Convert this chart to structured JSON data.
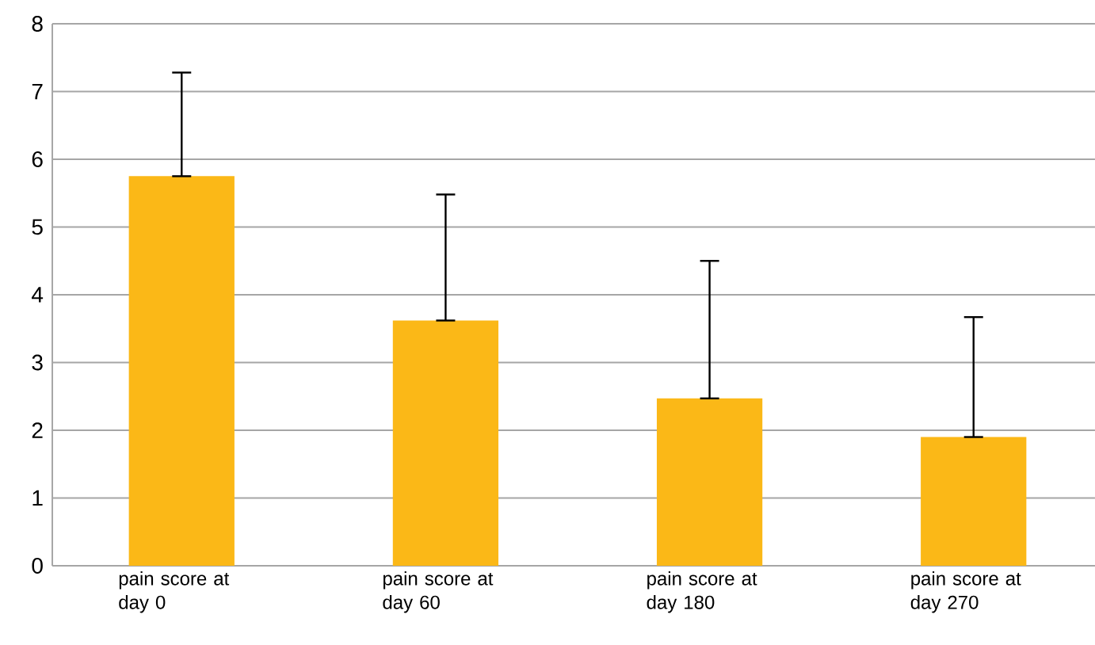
{
  "chart_data": {
    "type": "bar",
    "categories": [
      "pain score at day 0",
      "pain score at day 60",
      "pain score at day 180",
      "pain score at day 270"
    ],
    "values": [
      5.75,
      3.62,
      2.47,
      1.9
    ],
    "errors": [
      [
        5.75,
        7.28
      ],
      [
        3.62,
        5.48
      ],
      [
        2.47,
        4.5
      ],
      [
        1.9,
        3.67
      ]
    ],
    "color": "#fbb817",
    "ylim": [
      0,
      8
    ],
    "yticks": [
      0,
      1,
      2,
      3,
      4,
      5,
      6,
      7,
      8
    ],
    "grid": "y"
  }
}
